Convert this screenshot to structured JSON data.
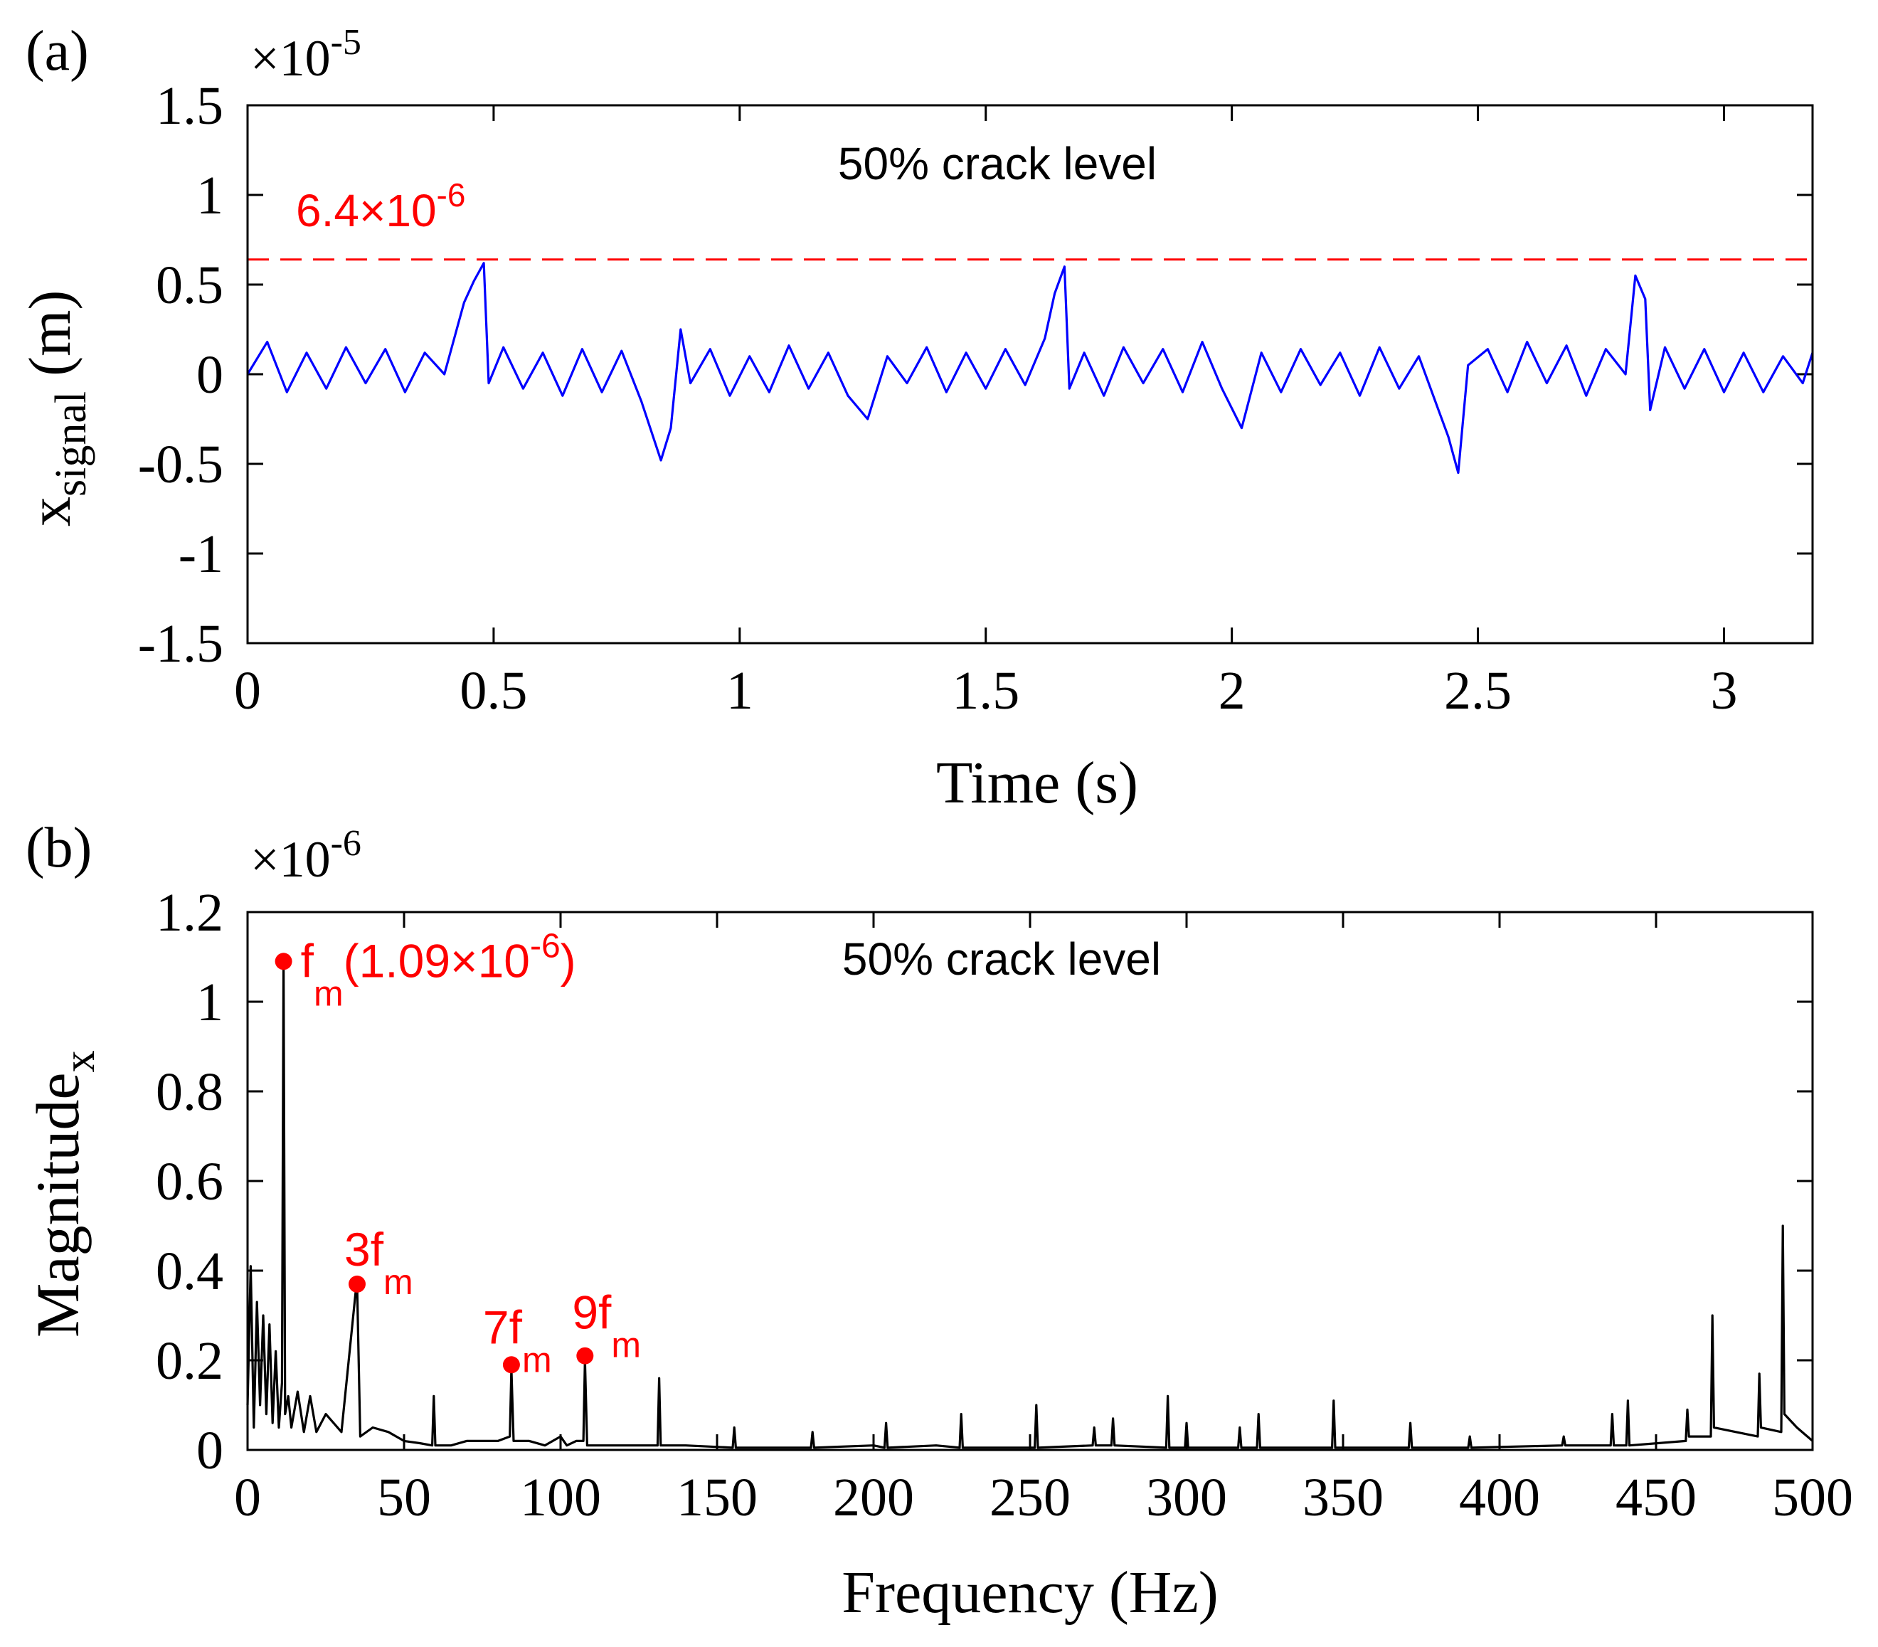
{
  "chart_data": [
    {
      "panel": "(a)",
      "type": "line",
      "title": "",
      "annotation": "50% crack level",
      "xlabel": "Time (s)",
      "ylabel_main": "x",
      "ylabel_sub": "signal",
      "ylabel_unit": " (m)",
      "xlim": [
        0,
        3.18
      ],
      "ylim": [
        -1.5,
        1.5
      ],
      "xticks": [
        0,
        0.5,
        1,
        1.5,
        2,
        2.5,
        3
      ],
      "xtick_labels": [
        "0",
        "0.5",
        "1",
        "1.5",
        "2",
        "2.5",
        "3"
      ],
      "yticks": [
        -1.5,
        -1,
        -0.5,
        0,
        0.5,
        1,
        1.5
      ],
      "ytick_labels": [
        "-1.5",
        "-1",
        "-0.5",
        "0",
        "0.5",
        "1",
        "1.5"
      ],
      "scale_base": "×10",
      "scale_exp": "-5",
      "threshold": {
        "value": 0.64,
        "label_base": "6.4×10",
        "label_exp": "-6",
        "color": "#ff0000"
      },
      "series": [
        {
          "name": "x_signal",
          "color": "#0000ff",
          "x": [
            0,
            0.04,
            0.08,
            0.12,
            0.16,
            0.2,
            0.24,
            0.28,
            0.32,
            0.36,
            0.4,
            0.44,
            0.46,
            0.48,
            0.49,
            0.52,
            0.56,
            0.6,
            0.64,
            0.68,
            0.72,
            0.76,
            0.8,
            0.84,
            0.86,
            0.88,
            0.9,
            0.94,
            0.98,
            1.02,
            1.06,
            1.1,
            1.14,
            1.18,
            1.22,
            1.26,
            1.3,
            1.34,
            1.38,
            1.42,
            1.46,
            1.5,
            1.54,
            1.58,
            1.62,
            1.64,
            1.66,
            1.67,
            1.7,
            1.74,
            1.78,
            1.82,
            1.86,
            1.9,
            1.94,
            1.98,
            2.02,
            2.06,
            2.1,
            2.14,
            2.18,
            2.22,
            2.26,
            2.3,
            2.34,
            2.38,
            2.42,
            2.44,
            2.46,
            2.48,
            2.52,
            2.56,
            2.6,
            2.64,
            2.68,
            2.72,
            2.76,
            2.8,
            2.82,
            2.84,
            2.85,
            2.88,
            2.92,
            2.96,
            3.0,
            3.04,
            3.08,
            3.12,
            3.16,
            3.18
          ],
          "values": [
            0.0,
            0.18,
            -0.1,
            0.12,
            -0.08,
            0.15,
            -0.05,
            0.14,
            -0.1,
            0.12,
            0.0,
            0.4,
            0.52,
            0.62,
            -0.05,
            0.15,
            -0.08,
            0.12,
            -0.12,
            0.14,
            -0.1,
            0.13,
            -0.15,
            -0.48,
            -0.3,
            0.25,
            -0.05,
            0.14,
            -0.12,
            0.1,
            -0.1,
            0.16,
            -0.08,
            0.12,
            -0.12,
            -0.25,
            0.1,
            -0.05,
            0.15,
            -0.1,
            0.12,
            -0.08,
            0.14,
            -0.06,
            0.2,
            0.45,
            0.6,
            -0.08,
            0.12,
            -0.12,
            0.15,
            -0.05,
            0.14,
            -0.1,
            0.18,
            -0.08,
            -0.3,
            0.12,
            -0.1,
            0.14,
            -0.06,
            0.12,
            -0.12,
            0.15,
            -0.08,
            0.1,
            -0.2,
            -0.35,
            -0.55,
            0.05,
            0.14,
            -0.1,
            0.18,
            -0.05,
            0.16,
            -0.12,
            0.14,
            0.0,
            0.55,
            0.42,
            -0.2,
            0.15,
            -0.08,
            0.14,
            -0.1,
            0.12,
            -0.1,
            0.1,
            -0.05,
            0.12
          ]
        }
      ]
    },
    {
      "panel": "(b)",
      "type": "line",
      "title": "",
      "annotation": "50% crack level",
      "xlabel": "Frequency (Hz)",
      "ylabel_main": "Magnitude",
      "ylabel_sub": "x",
      "xlim": [
        0,
        500
      ],
      "ylim": [
        0,
        1.2
      ],
      "xticks": [
        0,
        50,
        100,
        150,
        200,
        250,
        300,
        350,
        400,
        450,
        500
      ],
      "xtick_labels": [
        "0",
        "50",
        "100",
        "150",
        "200",
        "250",
        "300",
        "350",
        "400",
        "450",
        "500"
      ],
      "yticks": [
        0,
        0.2,
        0.4,
        0.6,
        0.8,
        1.0,
        1.2
      ],
      "ytick_labels": [
        "0",
        "0.2",
        "0.4",
        "0.6",
        "0.8",
        "1",
        "1.2"
      ],
      "scale_base": "×10",
      "scale_exp": "-6",
      "series": [
        {
          "name": "Magnitude_x spectrum",
          "color": "#000000",
          "x": [
            0,
            1,
            2,
            3,
            4,
            5,
            6,
            7,
            8,
            9,
            10,
            11,
            11.5,
            12,
            13,
            14,
            16,
            18,
            20,
            22,
            25,
            30,
            34.5,
            35,
            36,
            40,
            45,
            50,
            55,
            59,
            59.5,
            60,
            65,
            70,
            75,
            80,
            83.8,
            84.3,
            85,
            90,
            95,
            100,
            102,
            105,
            107.3,
            107.8,
            108.5,
            115,
            125,
            131,
            131.5,
            132,
            140,
            155,
            155.5,
            156,
            170,
            180,
            180.5,
            181,
            200,
            203.5,
            204,
            204.5,
            220,
            227.5,
            228,
            228.5,
            240,
            251.5,
            252,
            252.5,
            270,
            270.5,
            271,
            276,
            276.5,
            277,
            293.5,
            294,
            294.5,
            299.5,
            300,
            300.5,
            316.5,
            317,
            317.5,
            322.5,
            323,
            323.5,
            346.5,
            347,
            347.5,
            371,
            371.5,
            372,
            390,
            390.5,
            391,
            420,
            420.5,
            421,
            435.5,
            436,
            436.5,
            440.5,
            441,
            441.5,
            459.5,
            460,
            460.5,
            467.5,
            468,
            468.5,
            482.5,
            483,
            483.5,
            490,
            490.5,
            491,
            495,
            500
          ],
          "values": [
            0.1,
            0.41,
            0.05,
            0.33,
            0.1,
            0.3,
            0.08,
            0.28,
            0.06,
            0.22,
            0.05,
            0.15,
            1.09,
            0.08,
            0.12,
            0.05,
            0.13,
            0.04,
            0.12,
            0.04,
            0.08,
            0.04,
            0.35,
            0.37,
            0.03,
            0.05,
            0.04,
            0.02,
            0.015,
            0.01,
            0.12,
            0.01,
            0.01,
            0.02,
            0.02,
            0.02,
            0.03,
            0.18,
            0.02,
            0.02,
            0.01,
            0.03,
            0.01,
            0.02,
            0.02,
            0.2,
            0.01,
            0.01,
            0.01,
            0.01,
            0.16,
            0.01,
            0.01,
            0.005,
            0.05,
            0.005,
            0.005,
            0.005,
            0.04,
            0.005,
            0.01,
            0.005,
            0.06,
            0.005,
            0.01,
            0.005,
            0.08,
            0.005,
            0.005,
            0.005,
            0.1,
            0.005,
            0.01,
            0.05,
            0.01,
            0.01,
            0.07,
            0.01,
            0.005,
            0.12,
            0.005,
            0.005,
            0.06,
            0.005,
            0.005,
            0.05,
            0.005,
            0.005,
            0.08,
            0.005,
            0.005,
            0.11,
            0.005,
            0.005,
            0.06,
            0.005,
            0.005,
            0.03,
            0.005,
            0.01,
            0.03,
            0.01,
            0.01,
            0.08,
            0.01,
            0.01,
            0.11,
            0.01,
            0.02,
            0.09,
            0.03,
            0.03,
            0.3,
            0.05,
            0.03,
            0.17,
            0.05,
            0.04,
            0.5,
            0.08,
            0.05,
            0.02
          ]
        }
      ],
      "markers": [
        {
          "x": 11.5,
          "y": 1.09,
          "label_base": "f",
          "label_sub": "m",
          "label_tail": "(1.09×10",
          "label_exp": "-6",
          "label_close": ")"
        },
        {
          "x": 35,
          "y": 0.37,
          "label_base": "3f",
          "label_sub": "m"
        },
        {
          "x": 84.3,
          "y": 0.19,
          "label_base": "7f",
          "label_sub": "m"
        },
        {
          "x": 107.8,
          "y": 0.21,
          "label_base": "9f",
          "label_sub": "m"
        }
      ],
      "marker_color": "#ff0000"
    }
  ]
}
